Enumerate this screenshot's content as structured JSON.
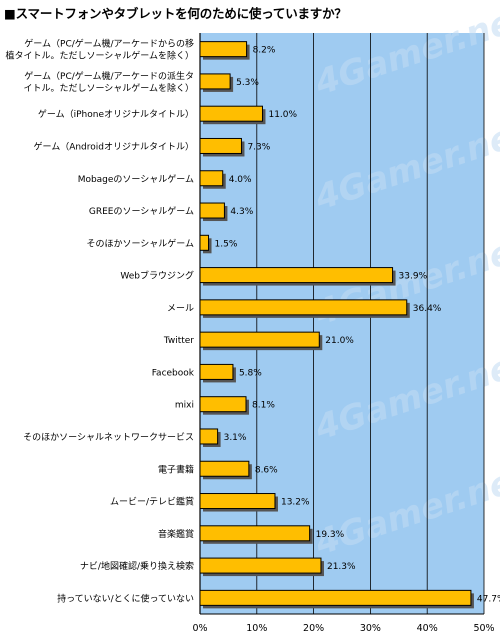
{
  "title": "■スマートフォンやタブレットを何のために使っていますか？",
  "watermark": "4Gamer.net",
  "colors": {
    "plot_bg": "#9fcbf1",
    "bar_fill": "#ffbe00",
    "bar_edge": "#000000",
    "bar_shadow": "#555555",
    "grid": "#000000"
  },
  "chart_data": {
    "type": "bar",
    "orientation": "horizontal",
    "title": "■スマートフォンやタブレットを何のために使っていますか？",
    "categories": [
      [
        "ゲーム（PC/ゲーム機/アーケードからの移",
        "植タイトル。ただしソーシャルゲームを除く）"
      ],
      [
        "ゲーム（PC/ゲーム機/アーケードの派生タ",
        "イトル。ただしソーシャルゲームを除く）"
      ],
      [
        "ゲーム（iPhoneオリジナルタイトル）"
      ],
      [
        "ゲーム（Androidオリジナルタイトル）"
      ],
      [
        "Mobageのソーシャルゲーム"
      ],
      [
        "GREEのソーシャルゲーム"
      ],
      [
        "そのほかソーシャルゲーム"
      ],
      [
        "Webブラウジング"
      ],
      [
        "メール"
      ],
      [
        "Twitter"
      ],
      [
        "Facebook"
      ],
      [
        "mixi"
      ],
      [
        "そのほかソーシャルネットワークサービス"
      ],
      [
        "電子書籍"
      ],
      [
        "ムービー/テレビ鑑賞"
      ],
      [
        "音楽鑑賞"
      ],
      [
        "ナビ/地図確認/乗り換え検索"
      ],
      [
        "持っていない/とくに使っていない"
      ]
    ],
    "values": [
      8.2,
      5.3,
      11.0,
      7.3,
      4.0,
      4.3,
      1.5,
      33.9,
      36.4,
      21.0,
      5.8,
      8.1,
      3.1,
      8.6,
      13.2,
      19.3,
      21.3,
      47.7
    ],
    "value_labels": [
      "8.2%",
      "5.3%",
      "11.0%",
      "7.3%",
      "4.0%",
      "4.3%",
      "1.5%",
      "33.9%",
      "36.4%",
      "21.0%",
      "5.8%",
      "8.1%",
      "3.1%",
      "8.6%",
      "13.2%",
      "19.3%",
      "21.3%",
      "47.7%"
    ],
    "xlim": [
      0,
      50
    ],
    "xticks": [
      "0%",
      "10%",
      "20%",
      "30%",
      "40%",
      "50%"
    ],
    "grid": true,
    "legend": "none"
  }
}
